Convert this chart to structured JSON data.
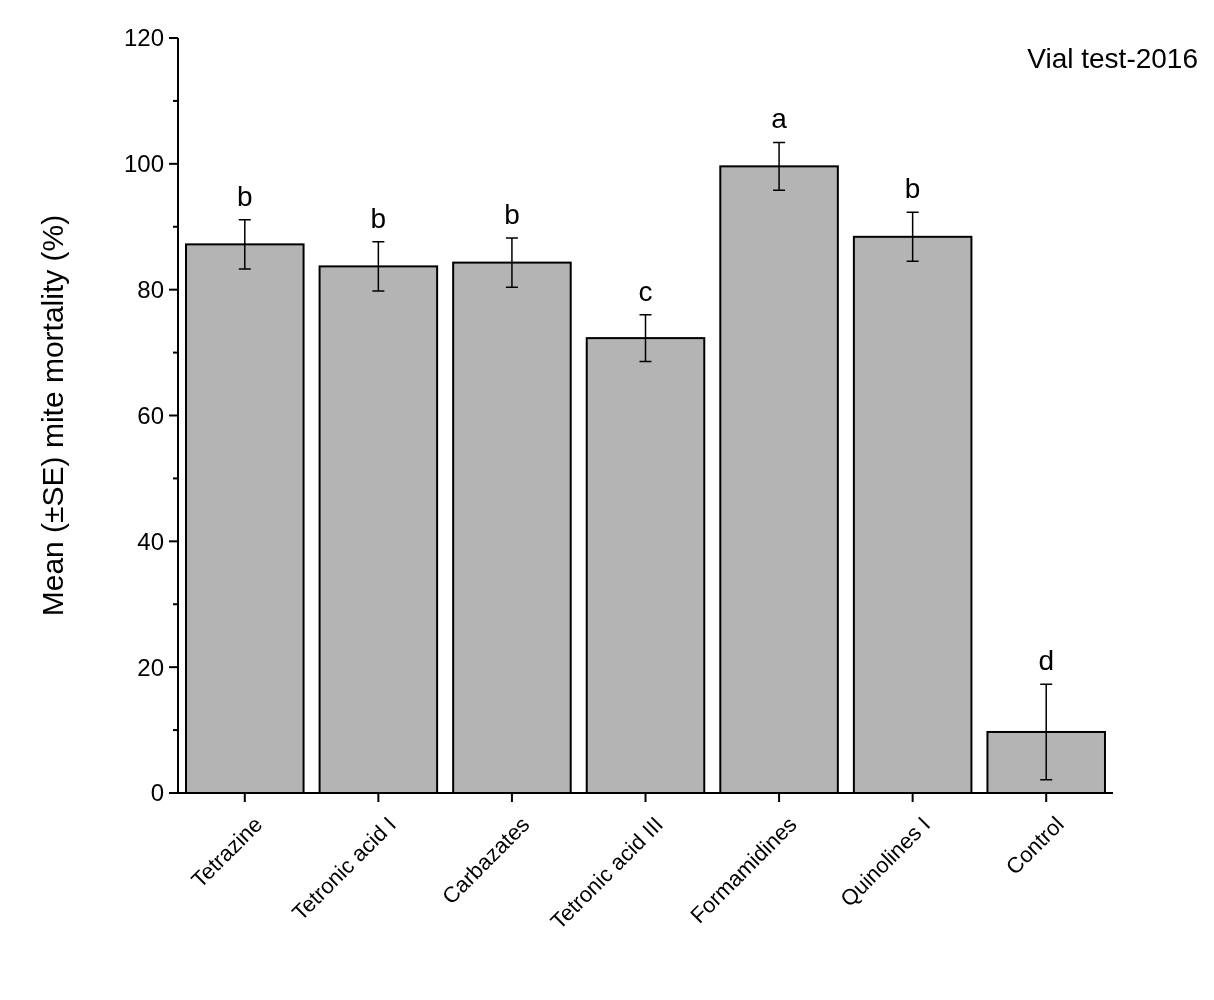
{
  "chart_data": {
    "type": "bar",
    "title": "Vial test-2016",
    "ylabel": "Mean (±SE) mite mortality (%)",
    "categories": [
      "Tetrazine",
      "Tetronic acid I",
      "Carbazates",
      "Tetronic acid III",
      "Formamidines",
      "Quinolines I",
      "Control"
    ],
    "values": [
      87.2,
      83.7,
      84.3,
      72.3,
      99.6,
      88.4,
      9.7
    ],
    "errors": [
      3.9,
      3.9,
      3.9,
      3.7,
      3.8,
      3.9,
      7.6
    ],
    "color": "#b4b4b4",
    "ylim": [
      0,
      120
    ],
    "yticks": [
      0,
      {
        "value": 10,
        "label": null
      },
      20,
      {
        "value": 30,
        "label": null
      },
      40,
      {
        "value": 50,
        "label": null
      },
      60,
      {
        "value": 70,
        "label": null
      },
      80,
      {
        "value": 90,
        "label": null
      },
      100,
      {
        "value": 110,
        "label": null
      },
      120
    ],
    "annotations": [
      {
        "text": "b",
        "x": "Tetrazine",
        "y": 91.1
      },
      {
        "text": "b",
        "x": "Tetronic acid I",
        "y": 87.6
      },
      {
        "text": "b",
        "x": "Carbazates",
        "y": 88.2
      },
      {
        "text": "c",
        "x": "Tetronic acid III",
        "y": 76
      },
      {
        "text": "a",
        "x": "Formamidines",
        "y": 103.4
      },
      {
        "text": "b",
        "x": "Quinolines I",
        "y": 92.3
      },
      {
        "text": "d",
        "x": "Control",
        "y": 17.3
      }
    ]
  }
}
